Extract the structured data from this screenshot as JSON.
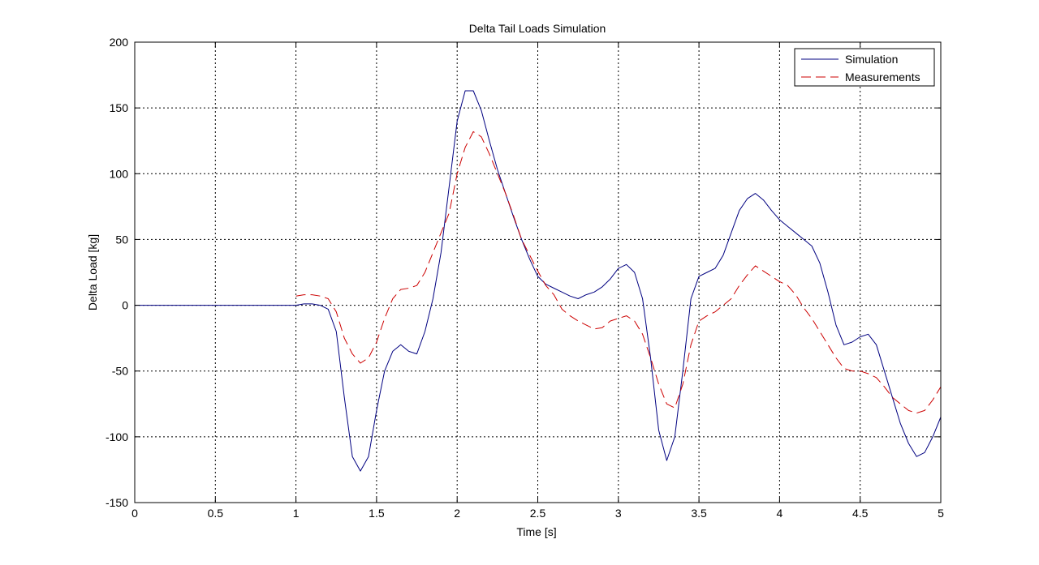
{
  "chart_data": {
    "type": "line",
    "title": "Delta Tail Loads Simulation",
    "xlabel": "Time [s]",
    "ylabel": "Delta Load [kg]",
    "xlim": [
      0,
      5
    ],
    "ylim": [
      -150,
      200
    ],
    "xticks": [
      0,
      0.5,
      1,
      1.5,
      2,
      2.5,
      3,
      3.5,
      4,
      4.5,
      5
    ],
    "xtick_labels": [
      "0",
      "0.5",
      "1",
      "1.5",
      "2",
      "2.5",
      "3",
      "3.5",
      "4",
      "4.5",
      "5"
    ],
    "yticks": [
      -150,
      -100,
      -50,
      0,
      50,
      100,
      150,
      200
    ],
    "ytick_labels": [
      "-150",
      "-100",
      "-50",
      "0",
      "50",
      "100",
      "150",
      "200"
    ],
    "grid": true,
    "legend_position": "top-right",
    "series": [
      {
        "name": "Simulation",
        "color": "#000080",
        "style": "solid",
        "points": [
          [
            0,
            0
          ],
          [
            1.0,
            0
          ],
          [
            1.05,
            1
          ],
          [
            1.1,
            1
          ],
          [
            1.15,
            0
          ],
          [
            1.2,
            -3
          ],
          [
            1.25,
            -20
          ],
          [
            1.3,
            -70
          ],
          [
            1.35,
            -115
          ],
          [
            1.4,
            -126
          ],
          [
            1.45,
            -115
          ],
          [
            1.5,
            -80
          ],
          [
            1.55,
            -50
          ],
          [
            1.6,
            -35
          ],
          [
            1.65,
            -30
          ],
          [
            1.7,
            -35
          ],
          [
            1.75,
            -37
          ],
          [
            1.8,
            -20
          ],
          [
            1.85,
            5
          ],
          [
            1.9,
            40
          ],
          [
            1.95,
            90
          ],
          [
            2.0,
            140
          ],
          [
            2.05,
            163
          ],
          [
            2.1,
            163
          ],
          [
            2.15,
            148
          ],
          [
            2.2,
            125
          ],
          [
            2.25,
            103
          ],
          [
            2.3,
            85
          ],
          [
            2.35,
            67
          ],
          [
            2.4,
            50
          ],
          [
            2.45,
            35
          ],
          [
            2.5,
            22
          ],
          [
            2.55,
            16
          ],
          [
            2.6,
            13
          ],
          [
            2.65,
            10
          ],
          [
            2.7,
            7
          ],
          [
            2.75,
            5
          ],
          [
            2.8,
            8
          ],
          [
            2.85,
            10
          ],
          [
            2.9,
            14
          ],
          [
            2.95,
            20
          ],
          [
            3.0,
            28
          ],
          [
            3.05,
            31
          ],
          [
            3.1,
            25
          ],
          [
            3.15,
            5
          ],
          [
            3.2,
            -40
          ],
          [
            3.25,
            -95
          ],
          [
            3.3,
            -118
          ],
          [
            3.35,
            -100
          ],
          [
            3.4,
            -50
          ],
          [
            3.45,
            5
          ],
          [
            3.5,
            22
          ],
          [
            3.55,
            25
          ],
          [
            3.6,
            28
          ],
          [
            3.65,
            38
          ],
          [
            3.7,
            55
          ],
          [
            3.75,
            72
          ],
          [
            3.8,
            81
          ],
          [
            3.85,
            85
          ],
          [
            3.9,
            80
          ],
          [
            3.95,
            72
          ],
          [
            4.0,
            65
          ],
          [
            4.05,
            60
          ],
          [
            4.1,
            55
          ],
          [
            4.15,
            50
          ],
          [
            4.2,
            45
          ],
          [
            4.25,
            32
          ],
          [
            4.3,
            10
          ],
          [
            4.35,
            -15
          ],
          [
            4.4,
            -30
          ],
          [
            4.45,
            -28
          ],
          [
            4.5,
            -24
          ],
          [
            4.55,
            -22
          ],
          [
            4.6,
            -30
          ],
          [
            4.65,
            -50
          ],
          [
            4.7,
            -70
          ],
          [
            4.75,
            -90
          ],
          [
            4.8,
            -105
          ],
          [
            4.85,
            -115
          ],
          [
            4.9,
            -112
          ],
          [
            4.95,
            -100
          ],
          [
            5.0,
            -85
          ]
        ]
      },
      {
        "name": "Measurements",
        "color": "#cc0000",
        "style": "dashed",
        "points": [
          [
            1.0,
            7
          ],
          [
            1.05,
            8
          ],
          [
            1.1,
            8
          ],
          [
            1.15,
            7
          ],
          [
            1.2,
            5
          ],
          [
            1.25,
            -5
          ],
          [
            1.3,
            -25
          ],
          [
            1.35,
            -37
          ],
          [
            1.4,
            -44
          ],
          [
            1.45,
            -40
          ],
          [
            1.5,
            -28
          ],
          [
            1.55,
            -10
          ],
          [
            1.6,
            5
          ],
          [
            1.65,
            12
          ],
          [
            1.7,
            13
          ],
          [
            1.75,
            15
          ],
          [
            1.8,
            25
          ],
          [
            1.85,
            40
          ],
          [
            1.9,
            55
          ],
          [
            1.95,
            70
          ],
          [
            2.0,
            100
          ],
          [
            2.05,
            120
          ],
          [
            2.1,
            132
          ],
          [
            2.15,
            128
          ],
          [
            2.2,
            115
          ],
          [
            2.25,
            100
          ],
          [
            2.3,
            85
          ],
          [
            2.35,
            68
          ],
          [
            2.4,
            50
          ],
          [
            2.45,
            38
          ],
          [
            2.5,
            26
          ],
          [
            2.55,
            15
          ],
          [
            2.6,
            8
          ],
          [
            2.65,
            -3
          ],
          [
            2.7,
            -8
          ],
          [
            2.75,
            -12
          ],
          [
            2.8,
            -15
          ],
          [
            2.85,
            -18
          ],
          [
            2.9,
            -17
          ],
          [
            2.95,
            -12
          ],
          [
            3.0,
            -10
          ],
          [
            3.05,
            -8
          ],
          [
            3.1,
            -12
          ],
          [
            3.15,
            -22
          ],
          [
            3.2,
            -40
          ],
          [
            3.25,
            -60
          ],
          [
            3.3,
            -75
          ],
          [
            3.35,
            -78
          ],
          [
            3.4,
            -60
          ],
          [
            3.45,
            -30
          ],
          [
            3.5,
            -12
          ],
          [
            3.55,
            -8
          ],
          [
            3.6,
            -5
          ],
          [
            3.65,
            0
          ],
          [
            3.7,
            5
          ],
          [
            3.75,
            15
          ],
          [
            3.8,
            23
          ],
          [
            3.85,
            30
          ],
          [
            3.9,
            26
          ],
          [
            3.95,
            22
          ],
          [
            4.0,
            18
          ],
          [
            4.05,
            15
          ],
          [
            4.1,
            8
          ],
          [
            4.15,
            -2
          ],
          [
            4.2,
            -10
          ],
          [
            4.25,
            -20
          ],
          [
            4.3,
            -30
          ],
          [
            4.35,
            -40
          ],
          [
            4.4,
            -48
          ],
          [
            4.45,
            -50
          ],
          [
            4.5,
            -50
          ],
          [
            4.55,
            -52
          ],
          [
            4.6,
            -55
          ],
          [
            4.65,
            -62
          ],
          [
            4.7,
            -70
          ],
          [
            4.75,
            -75
          ],
          [
            4.8,
            -80
          ],
          [
            4.85,
            -82
          ],
          [
            4.9,
            -80
          ],
          [
            4.95,
            -72
          ],
          [
            5.0,
            -62
          ]
        ]
      }
    ]
  }
}
